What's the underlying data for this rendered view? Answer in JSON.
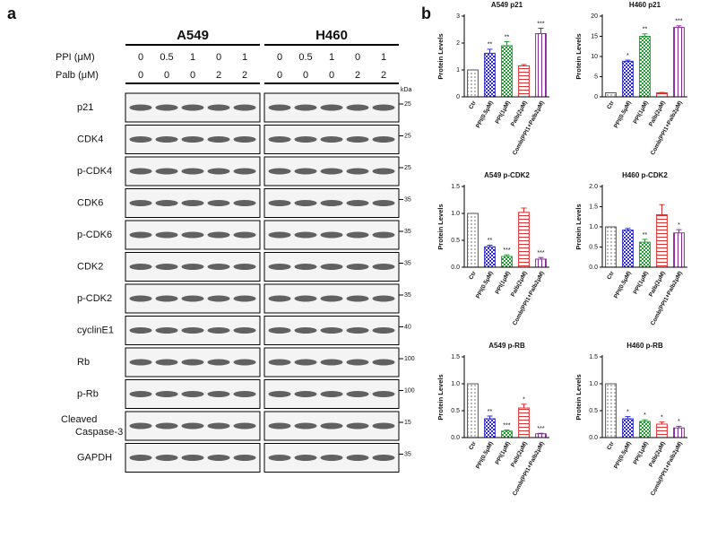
{
  "blot": {
    "label": "a",
    "groups": [
      "A549",
      "H460"
    ],
    "units": "kDa",
    "conditions": [
      {
        "name": "PPI (μM)",
        "values": [
          "0",
          "0.5",
          "1",
          "0",
          "1"
        ]
      },
      {
        "name": "Palb (μM)",
        "values": [
          "0",
          "0",
          "0",
          "2",
          "2"
        ]
      }
    ],
    "rows": [
      {
        "name": "p21",
        "marker": "25"
      },
      {
        "name": "CDK4",
        "marker": "25"
      },
      {
        "name": "p-CDK4",
        "marker": "25"
      },
      {
        "name": "CDK6",
        "marker": "35"
      },
      {
        "name": "p-CDK6",
        "marker": "35"
      },
      {
        "name": "CDK2",
        "marker": "35"
      },
      {
        "name": "p-CDK2",
        "marker": "35"
      },
      {
        "name": "cyclinE1",
        "marker": "40"
      },
      {
        "name": "Rb",
        "marker": "100"
      },
      {
        "name": "p-Rb",
        "marker": "100"
      },
      {
        "name": "Cleaved Caspase-3",
        "marker": "15"
      },
      {
        "name": "GAPDH",
        "marker": "35"
      }
    ]
  },
  "panel_b_label": "b",
  "chart_data": [
    {
      "type": "bar",
      "title": "A549 p21",
      "y_label": "Protein Levels",
      "categories": [
        "Ctr",
        "PPI(0.5μM)",
        "PPI(1μM)",
        "Palb(2μM)",
        "Comb(PPI1+Palb2μM)"
      ],
      "colors": [
        "#555555",
        "#2b2bd6",
        "#1e9e2e",
        "#e03030",
        "#8a2a9e"
      ],
      "values": [
        1,
        1.62,
        1.9,
        1.15,
        2.35
      ],
      "errors": [
        0,
        0.15,
        0.15,
        0.05,
        0.2
      ],
      "annotations": [
        null,
        "**",
        "**",
        null,
        "***"
      ],
      "ylim": [
        0,
        3
      ],
      "yticks": [
        0,
        1,
        2,
        3
      ]
    },
    {
      "type": "bar",
      "title": "H460 p21",
      "y_label": "Protein Levels",
      "categories": [
        "Ctr",
        "PPI(0.5μM)",
        "PPI(1μM)",
        "Palb(2μM)",
        "Comb(PPI1+Palb2μM)"
      ],
      "colors": [
        "#555555",
        "#2b2bd6",
        "#1e9e2e",
        "#e03030",
        "#8a2a9e"
      ],
      "values": [
        1,
        8.8,
        15,
        1,
        17.2
      ],
      "errors": [
        0,
        0.3,
        0.6,
        0.1,
        0.4
      ],
      "annotations": [
        null,
        "*",
        "**",
        null,
        "***"
      ],
      "ylim": [
        0,
        20
      ],
      "yticks": [
        0,
        5,
        10,
        15,
        20
      ]
    },
    {
      "type": "bar",
      "title": "A549 p-CDK2",
      "y_label": "Protein Levels",
      "categories": [
        "Ctr",
        "PPI(0.5μM)",
        "PPI(1μM)",
        "Palb(2μM)",
        "Comb(PPI1+Palb2μM)"
      ],
      "colors": [
        "#555555",
        "#2b2bd6",
        "#1e9e2e",
        "#e03030",
        "#8a2a9e"
      ],
      "values": [
        1,
        0.38,
        0.2,
        1.02,
        0.15
      ],
      "errors": [
        0,
        0.03,
        0.03,
        0.08,
        0.03
      ],
      "annotations": [
        null,
        "**",
        "***",
        null,
        "***"
      ],
      "ylim": [
        0,
        1.5
      ],
      "yticks": [
        {
          "value": 0,
          "label": "0.0"
        },
        0.5,
        {
          "value": 1,
          "label": "1.0"
        },
        1.5
      ]
    },
    {
      "type": "bar",
      "title": "H460 p-CDK2",
      "y_label": "Protein Levels",
      "categories": [
        "Ctr",
        "PPI(0.5μM)",
        "PPI(1μM)",
        "Palb(2μM)",
        "Comb(PPI1+Palb2μM)"
      ],
      "colors": [
        "#555555",
        "#2b2bd6",
        "#1e9e2e",
        "#e03030",
        "#8a2a9e"
      ],
      "values": [
        1,
        0.92,
        0.62,
        1.3,
        0.85
      ],
      "errors": [
        0,
        0.04,
        0.07,
        0.25,
        0.08
      ],
      "annotations": [
        null,
        null,
        "**",
        null,
        "*"
      ],
      "ylim": [
        0,
        2
      ],
      "yticks": [
        {
          "value": 0,
          "label": "0.0"
        },
        0.5,
        {
          "value": 1,
          "label": "1.0"
        },
        1.5,
        {
          "value": 2,
          "label": "2.0"
        }
      ]
    },
    {
      "type": "bar",
      "title": "A549 p-RB",
      "y_label": "Protein Levels",
      "categories": [
        "Ctr",
        "PPI(0.5μM)",
        "PPI(1μM)",
        "Palb(2μM)",
        "Comb(PPI1+Palb2μM)"
      ],
      "colors": [
        "#555555",
        "#2b2bd6",
        "#1e9e2e",
        "#e03030",
        "#8a2a9e"
      ],
      "values": [
        1,
        0.35,
        0.12,
        0.55,
        0.07
      ],
      "errors": [
        0,
        0.05,
        0.02,
        0.07,
        0.01
      ],
      "annotations": [
        null,
        "**",
        "***",
        "*",
        "***"
      ],
      "ylim": [
        0,
        1.5
      ],
      "yticks": [
        {
          "value": 0,
          "label": "0.0"
        },
        0.5,
        {
          "value": 1,
          "label": "1.0"
        },
        1.5
      ]
    },
    {
      "type": "bar",
      "title": "H460 p-RB",
      "y_label": "Protein Levels",
      "categories": [
        "Ctr",
        "PPI(0.5μM)",
        "PPI(1μM)",
        "Palb(2μM)",
        "Comb(PPI1+Palb2μM)"
      ],
      "colors": [
        "#555555",
        "#2b2bd6",
        "#1e9e2e",
        "#e03030",
        "#8a2a9e"
      ],
      "values": [
        1,
        0.35,
        0.3,
        0.25,
        0.18
      ],
      "errors": [
        0,
        0.04,
        0.03,
        0.04,
        0.03
      ],
      "annotations": [
        null,
        "*",
        "*",
        "*",
        "*"
      ],
      "ylim": [
        0,
        1.5
      ],
      "yticks": [
        {
          "value": 0,
          "label": "0.0"
        },
        0.5,
        {
          "value": 1,
          "label": "1.0"
        },
        1.5
      ]
    }
  ]
}
